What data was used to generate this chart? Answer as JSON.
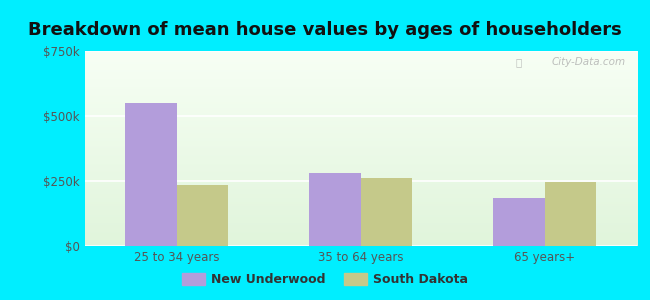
{
  "title": "Breakdown of mean house values by ages of householders",
  "categories": [
    "25 to 34 years",
    "35 to 64 years",
    "65 years+"
  ],
  "new_underwood": [
    550000,
    280000,
    183000
  ],
  "south_dakota": [
    233000,
    260000,
    248000
  ],
  "bar_color_nu": "#b39ddb",
  "bar_color_sd": "#c5c98a",
  "ylim": [
    0,
    750000
  ],
  "yticks": [
    0,
    250000,
    500000,
    750000
  ],
  "ytick_labels": [
    "$0",
    "$250k",
    "$500k",
    "$750k"
  ],
  "legend_nu": "New Underwood",
  "legend_sd": "South Dakota",
  "bg_outer": "#00eeff",
  "watermark": "City-Data.com",
  "title_fontsize": 13,
  "tick_fontsize": 8.5,
  "legend_fontsize": 9
}
